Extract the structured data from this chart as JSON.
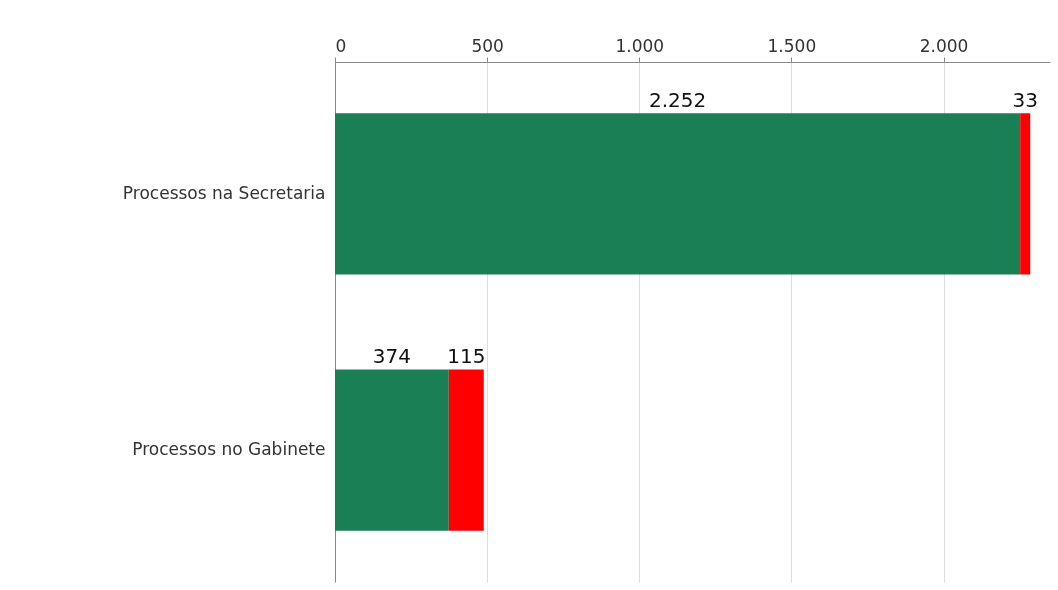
{
  "chart_data": {
    "type": "bar",
    "orientation": "horizontal",
    "stacked": true,
    "categories": [
      "Processos na Secretaria",
      "Processos no Gabinete"
    ],
    "series": [
      {
        "color": "#1a7f55",
        "values": [
          2252,
          374
        ],
        "value_labels": [
          "2.252",
          "374"
        ]
      },
      {
        "color": "#ff0000",
        "values": [
          33,
          115
        ],
        "value_labels": [
          "33",
          "115"
        ]
      }
    ],
    "xlim": [
      0,
      2350
    ],
    "xticks": [
      0,
      500,
      {
        "value": 1000,
        "label": "1.000"
      },
      {
        "value": 1500,
        "label": "1.500"
      },
      {
        "value": 2000,
        "label": "2.000"
      }
    ],
    "grid": "x",
    "legend": false
  }
}
